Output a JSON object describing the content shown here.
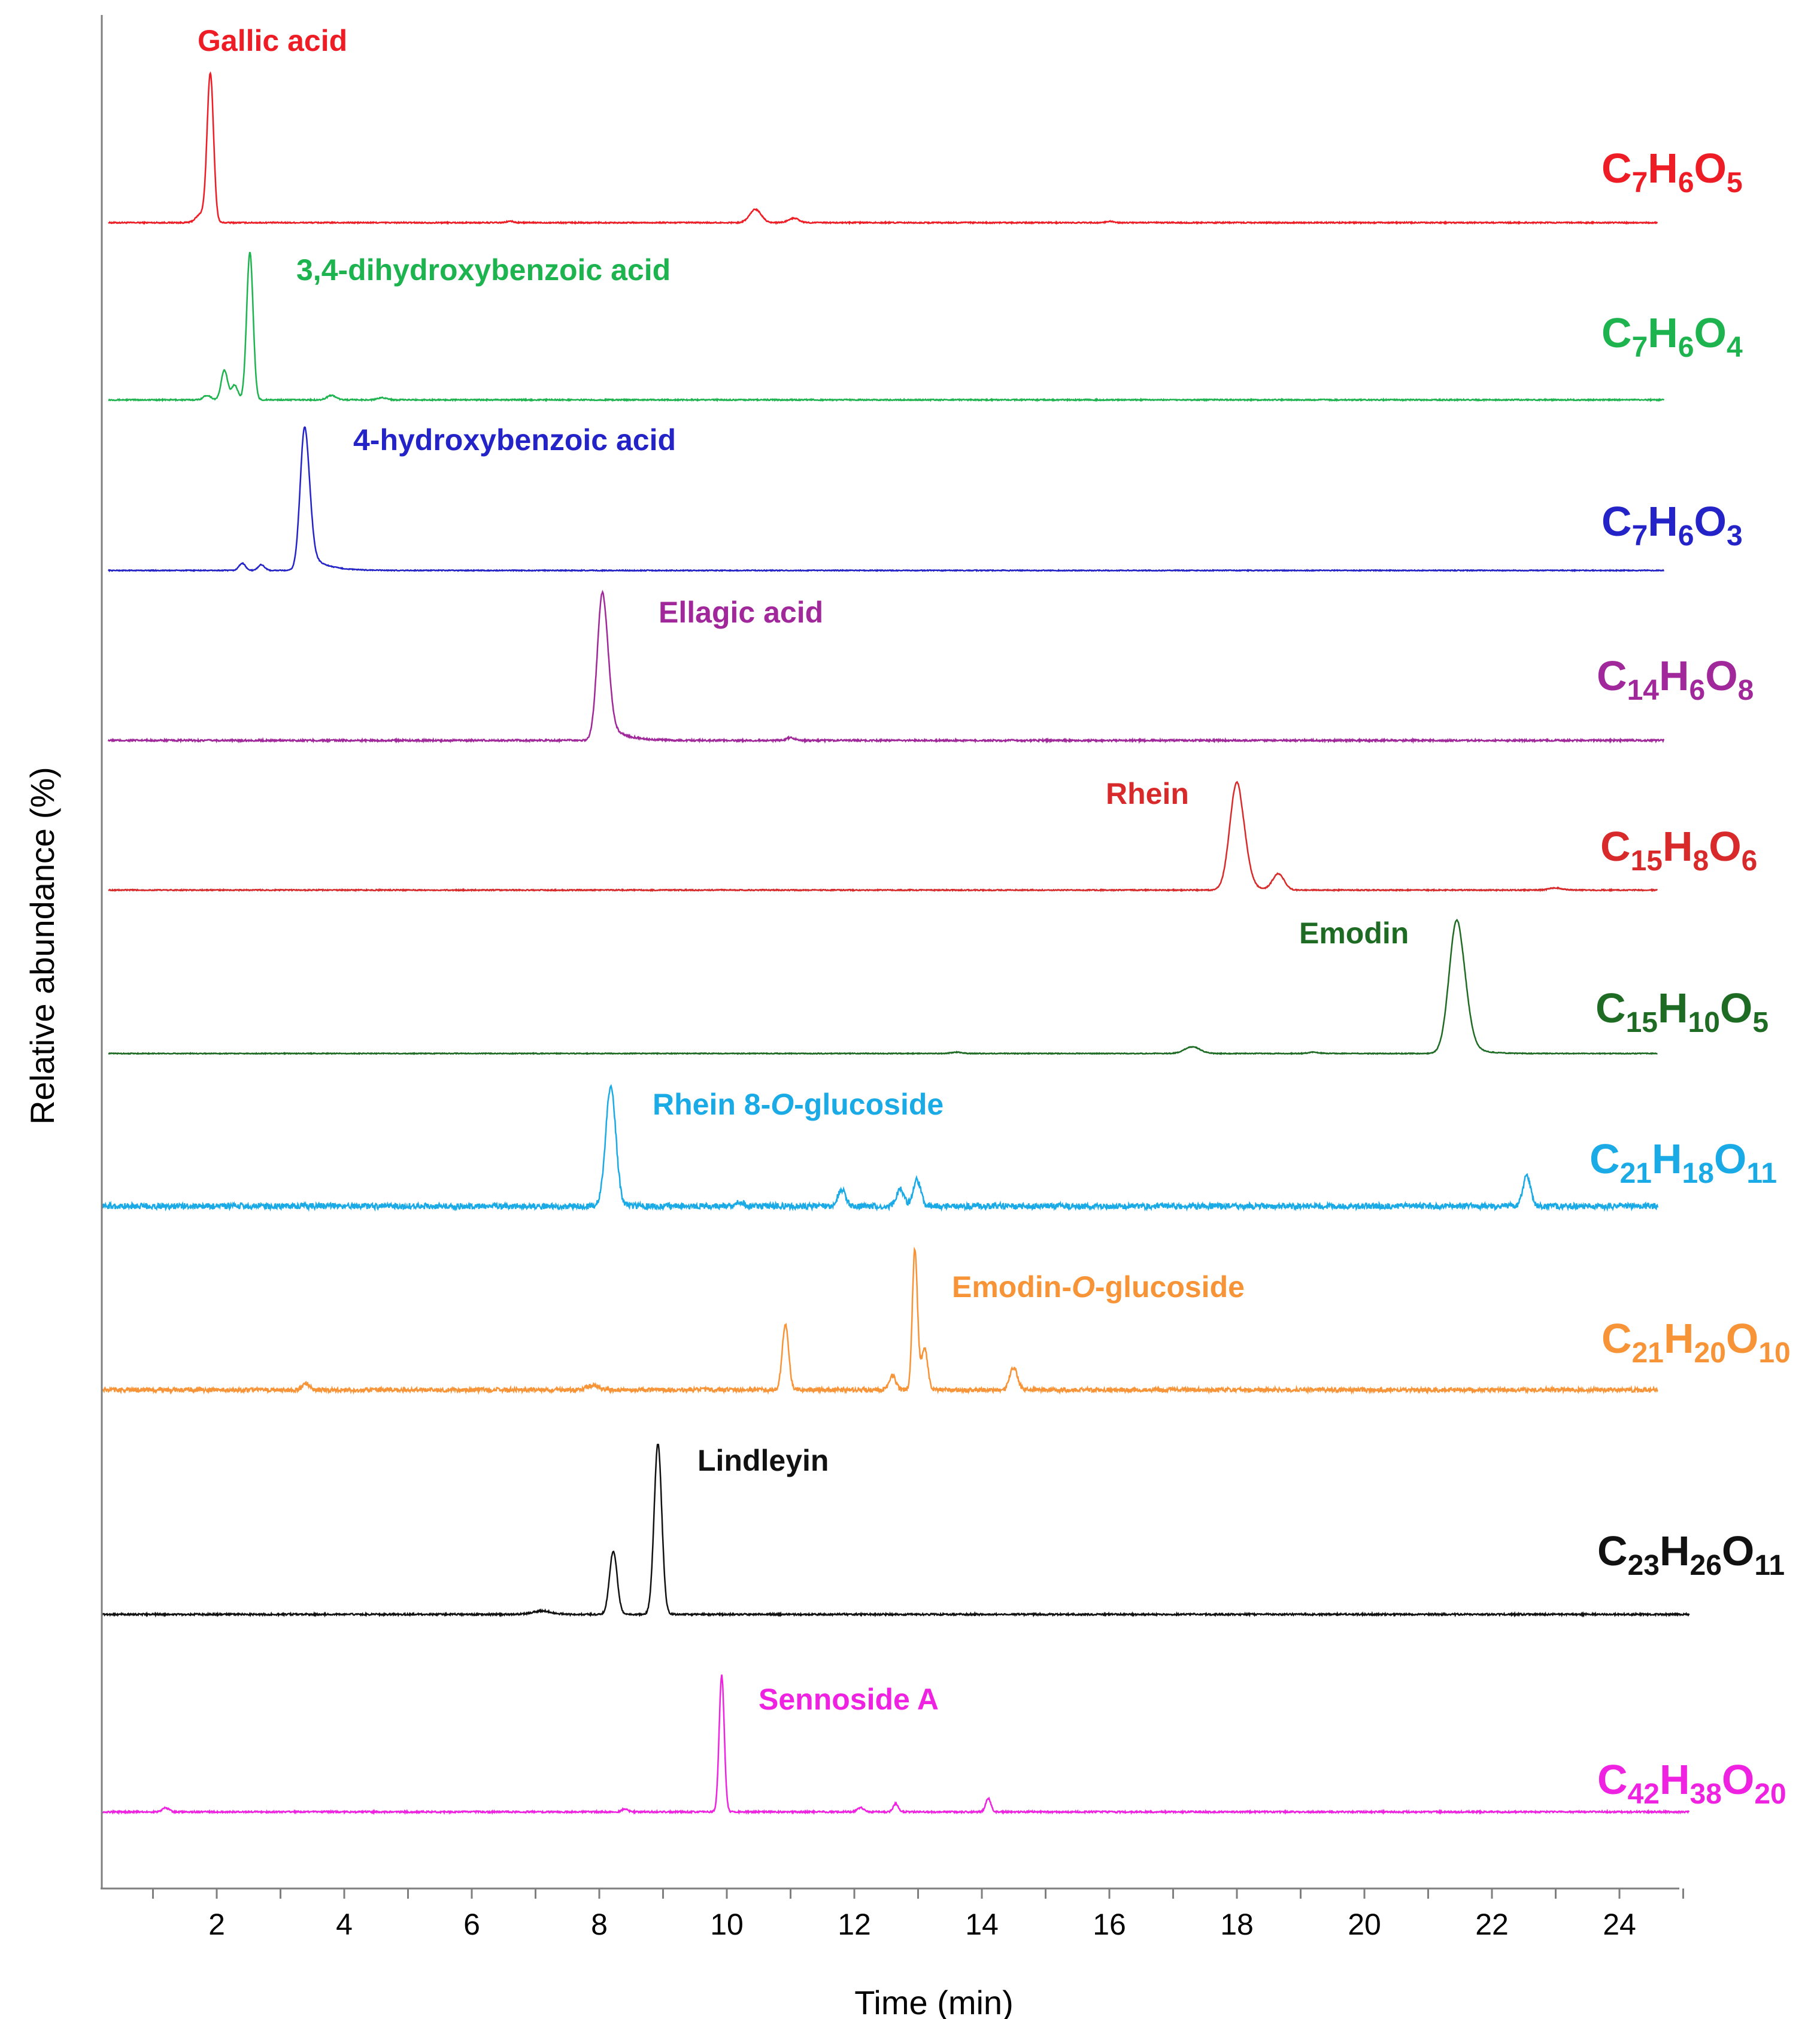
{
  "chart_data": {
    "type": "line",
    "xlabel": "Time (min)",
    "ylabel": "Relative abundance (%)",
    "xlim": [
      0,
      25.5
    ],
    "xticks": [
      2,
      4,
      6,
      8,
      10,
      12,
      14,
      16,
      18,
      20,
      22,
      24
    ],
    "series": [
      {
        "name": "Gallic acid",
        "formula": {
          "el": [
            "C",
            "H",
            "O"
          ],
          "sub": [
            "7",
            "6",
            "5"
          ]
        },
        "color": "#ee1c24",
        "x_range": [
          0.3,
          24.6
        ],
        "peaks": [
          {
            "t": 1.9,
            "h": 1.0,
            "w": 0.05
          },
          {
            "t": 1.76,
            "h": 0.06,
            "w": 0.08
          },
          {
            "t": 10.45,
            "h": 0.09,
            "w": 0.09
          },
          {
            "t": 11.05,
            "h": 0.03,
            "w": 0.08
          },
          {
            "t": 6.6,
            "h": 0.01,
            "w": 0.05
          },
          {
            "t": 16.0,
            "h": 0.01,
            "w": 0.05
          }
        ],
        "noise": 0.004
      },
      {
        "name": "3,4-dihydroxybenzoic acid",
        "formula": {
          "el": [
            "C",
            "H",
            "O"
          ],
          "sub": [
            "7",
            "6",
            "4"
          ]
        },
        "color": "#1db34e",
        "x_range": [
          0.3,
          24.7
        ],
        "peaks": [
          {
            "t": 2.52,
            "h": 1.0,
            "w": 0.05
          },
          {
            "t": 2.12,
            "h": 0.2,
            "w": 0.05
          },
          {
            "t": 2.28,
            "h": 0.1,
            "w": 0.05
          },
          {
            "t": 1.85,
            "h": 0.03,
            "w": 0.06
          },
          {
            "t": 3.8,
            "h": 0.03,
            "w": 0.07
          },
          {
            "t": 4.6,
            "h": 0.015,
            "w": 0.07
          }
        ],
        "noise": 0.004
      },
      {
        "name": "4-hydroxybenzoic acid",
        "formula": {
          "el": [
            "C",
            "H",
            "O"
          ],
          "sub": [
            "7",
            "6",
            "3"
          ]
        },
        "color": "#2323c8",
        "x_range": [
          0.3,
          24.7
        ],
        "peaks": [
          {
            "t": 3.38,
            "h": 1.0,
            "w": 0.07,
            "tail": 0.25
          },
          {
            "t": 2.4,
            "h": 0.05,
            "w": 0.05
          },
          {
            "t": 2.7,
            "h": 0.04,
            "w": 0.05
          }
        ],
        "noise": 0.003
      },
      {
        "name": "Ellagic acid",
        "formula": {
          "el": [
            "C",
            "H",
            "O"
          ],
          "sub": [
            "14",
            "6",
            "8"
          ]
        },
        "color": "#a0289a",
        "x_range": [
          0.3,
          24.7
        ],
        "peaks": [
          {
            "t": 8.05,
            "h": 1.0,
            "w": 0.08,
            "tail": 0.25
          },
          {
            "t": 11.0,
            "h": 0.02,
            "w": 0.06
          }
        ],
        "noise": 0.006
      },
      {
        "name": "Rhein",
        "formula": {
          "el": [
            "C",
            "H",
            "O"
          ],
          "sub": [
            "15",
            "8",
            "6"
          ]
        },
        "color": "#d82a2a",
        "x_range": [
          0.3,
          24.6
        ],
        "peaks": [
          {
            "t": 18.0,
            "h": 1.0,
            "w": 0.11,
            "tail": 0.15
          },
          {
            "t": 18.65,
            "h": 0.15,
            "w": 0.09
          },
          {
            "t": 23.0,
            "h": 0.02,
            "w": 0.1
          }
        ],
        "noise": 0.005
      },
      {
        "name": "Emodin",
        "formula": {
          "el": [
            "C",
            "H",
            "O"
          ],
          "sub": [
            "15",
            "10",
            "5"
          ]
        },
        "color": "#1e6b24",
        "x_range": [
          0.3,
          24.6
        ],
        "peaks": [
          {
            "t": 21.45,
            "h": 1.0,
            "w": 0.12,
            "tail": 0.2
          },
          {
            "t": 17.3,
            "h": 0.05,
            "w": 0.12
          },
          {
            "t": 13.6,
            "h": 0.01,
            "w": 0.08
          },
          {
            "t": 19.2,
            "h": 0.01,
            "w": 0.08
          }
        ],
        "noise": 0.003
      },
      {
        "name": "Rhein 8-O-glucoside",
        "formula": {
          "el": [
            "C",
            "H",
            "O"
          ],
          "sub": [
            "21",
            "18",
            "11"
          ]
        },
        "color": "#1aaae6",
        "x_range": [
          0.2,
          24.6
        ],
        "peaks": [
          {
            "t": 8.18,
            "h": 1.0,
            "w": 0.08
          },
          {
            "t": 11.8,
            "h": 0.14,
            "w": 0.06
          },
          {
            "t": 12.72,
            "h": 0.14,
            "w": 0.06
          },
          {
            "t": 12.98,
            "h": 0.22,
            "w": 0.06
          },
          {
            "t": 22.55,
            "h": 0.26,
            "w": 0.06
          },
          {
            "t": 10.2,
            "h": 0.04,
            "w": 0.06
          }
        ],
        "noise": 0.025
      },
      {
        "name": "Emodin-O-glucoside",
        "formula": {
          "el": [
            "C",
            "H",
            "O"
          ],
          "sub": [
            "21",
            "20",
            "10"
          ]
        },
        "color": "#f79438",
        "x_range": [
          0.2,
          24.6
        ],
        "peaks": [
          {
            "t": 12.95,
            "h": 1.0,
            "w": 0.04
          },
          {
            "t": 13.1,
            "h": 0.3,
            "w": 0.05
          },
          {
            "t": 10.92,
            "h": 0.47,
            "w": 0.05
          },
          {
            "t": 14.5,
            "h": 0.16,
            "w": 0.06
          },
          {
            "t": 12.6,
            "h": 0.1,
            "w": 0.05
          },
          {
            "t": 3.4,
            "h": 0.04,
            "w": 0.06
          },
          {
            "t": 7.9,
            "h": 0.03,
            "w": 0.1
          }
        ],
        "noise": 0.015
      },
      {
        "name": "Lindleyin",
        "formula": {
          "el": [
            "C",
            "H",
            "O"
          ],
          "sub": [
            "23",
            "26",
            "11"
          ]
        },
        "color": "#111111",
        "x_range": [
          0.2,
          25.1
        ],
        "peaks": [
          {
            "t": 8.92,
            "h": 1.0,
            "w": 0.06
          },
          {
            "t": 8.22,
            "h": 0.37,
            "w": 0.06
          },
          {
            "t": 7.1,
            "h": 0.02,
            "w": 0.15
          }
        ],
        "noise": 0.005
      },
      {
        "name": "Sennoside A",
        "formula": {
          "el": [
            "C",
            "H",
            "O"
          ],
          "sub": [
            "42",
            "38",
            "20"
          ]
        },
        "color": "#ee22e0",
        "x_range": [
          0.2,
          25.1
        ],
        "peaks": [
          {
            "t": 9.92,
            "h": 1.0,
            "w": 0.04
          },
          {
            "t": 14.1,
            "h": 0.1,
            "w": 0.04
          },
          {
            "t": 12.65,
            "h": 0.06,
            "w": 0.04
          },
          {
            "t": 12.1,
            "h": 0.03,
            "w": 0.05
          },
          {
            "t": 1.2,
            "h": 0.03,
            "w": 0.05
          },
          {
            "t": 8.4,
            "h": 0.02,
            "w": 0.05
          }
        ],
        "noise": 0.006
      }
    ],
    "labels": [
      {
        "text": "Gallic acid"
      },
      {
        "text": "3,4-dihydroxybenzoic acid"
      },
      {
        "text": "4-hydroxybenzoic acid"
      },
      {
        "text": "Ellagic acid"
      },
      {
        "text": "Rhein"
      },
      {
        "text": "Emodin"
      },
      {
        "text_parts": [
          "Rhein 8-",
          "O",
          "-glucoside"
        ]
      },
      {
        "text_parts": [
          "Emodin-",
          "O",
          "-glucoside"
        ]
      },
      {
        "text": "Lindleyin"
      },
      {
        "text": "Sennoside A"
      }
    ]
  }
}
